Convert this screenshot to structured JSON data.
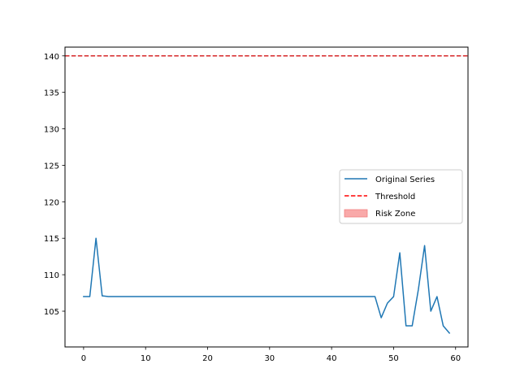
{
  "chart_data": {
    "type": "line",
    "title": "",
    "xlabel": "",
    "ylabel": "",
    "xlim": [
      -3,
      62
    ],
    "ylim": [
      100.1,
      141.2
    ],
    "xticks": [
      0,
      10,
      20,
      30,
      40,
      50,
      60
    ],
    "yticks": [
      105,
      110,
      115,
      120,
      125,
      130,
      135,
      140
    ],
    "grid": false,
    "legend": {
      "placement": "center-right"
    },
    "series": [
      {
        "name": "Original Series",
        "color": "#1f77b4",
        "style": "solid",
        "x": [
          0,
          1,
          2,
          3,
          4,
          5,
          6,
          7,
          8,
          9,
          10,
          11,
          12,
          13,
          14,
          15,
          16,
          17,
          18,
          19,
          20,
          21,
          22,
          23,
          24,
          25,
          26,
          27,
          28,
          29,
          30,
          31,
          32,
          33,
          34,
          35,
          36,
          37,
          38,
          39,
          40,
          41,
          42,
          43,
          44,
          45,
          46,
          47,
          48,
          49,
          50,
          51,
          52,
          53,
          54,
          55,
          56,
          57,
          58,
          59
        ],
        "y": [
          107,
          107,
          115,
          107.1,
          107,
          107,
          107,
          107,
          107,
          107,
          107,
          107,
          107,
          107,
          107,
          107,
          107,
          107,
          107,
          107,
          107,
          107,
          107,
          107,
          107,
          107,
          107,
          107,
          107,
          107,
          107,
          107,
          107,
          107,
          107,
          107,
          107,
          107,
          107,
          107,
          107,
          107,
          107,
          107,
          107,
          107,
          107,
          107,
          104.1,
          106.1,
          107,
          113,
          103,
          103,
          108,
          114,
          105,
          107,
          103,
          102
        ]
      }
    ],
    "reference_lines": [
      {
        "name": "Threshold",
        "orientation": "horizontal",
        "y": 140,
        "color": "#d62728",
        "style": "dashed"
      }
    ],
    "legend_entries": [
      {
        "label": "Original Series",
        "kind": "line",
        "color": "#1f77b4"
      },
      {
        "label": "Threshold",
        "kind": "dashed-line",
        "color": "#ff0000"
      },
      {
        "label": "Risk Zone",
        "kind": "patch",
        "color": "#f9a9a9"
      }
    ]
  }
}
